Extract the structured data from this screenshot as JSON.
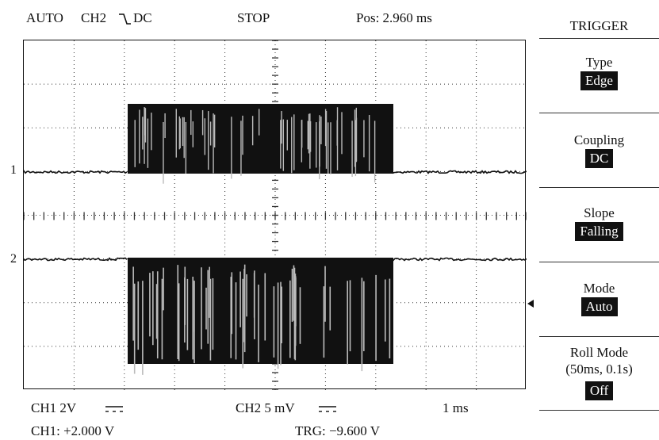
{
  "header": {
    "mode": "AUTO",
    "source": "CH2",
    "slope_glyph": "⿼",
    "coupling": "DC",
    "run_state": "STOP",
    "position": "Pos: 2.960 ms"
  },
  "screen": {
    "channel_markers": [
      "1",
      "2"
    ],
    "trigger_marker": "◂",
    "colors": {
      "trace": "#111111",
      "grid": "#333333",
      "gap": "#bbbbbb"
    }
  },
  "footer": {
    "ch1_scale": "CH1 2V",
    "ch1_coupling": "⎓",
    "ch2_scale": "CH2  5 mV",
    "ch2_coupling": "⎓",
    "timebase": "1 ms",
    "ch1_offset": "CH1: +2.000 V",
    "trigger_level": "TRG: −9.600 V"
  },
  "panel": {
    "title": "TRIGGER",
    "items": [
      {
        "label": "Type",
        "value": "Edge"
      },
      {
        "label": "Coupling",
        "value": "DC"
      },
      {
        "label": "Slope",
        "value": "Falling"
      },
      {
        "label": "Mode",
        "value": "Auto"
      },
      {
        "label": "Roll Mode",
        "sublabel": "(50ms, 0.1s)",
        "value": "Off"
      }
    ]
  }
}
